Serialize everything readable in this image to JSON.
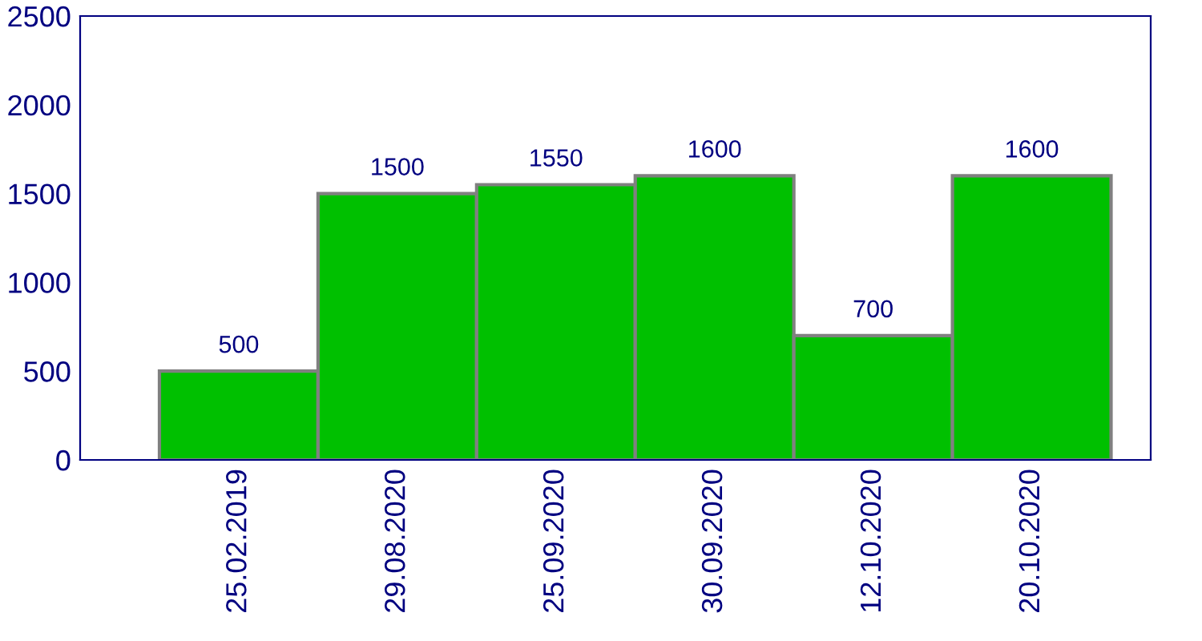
{
  "chart_data": {
    "type": "bar",
    "categories": [
      "25.02.2019",
      "29.08.2020",
      "25.09.2020",
      "30.09.2020",
      "12.10.2020",
      "20.10.2020"
    ],
    "values": [
      500,
      1500,
      1550,
      1600,
      700,
      1600
    ],
    "color": "#00c000",
    "ylim": [
      0,
      2500
    ],
    "yticks": [
      0,
      500,
      1000,
      1500,
      2000,
      2500
    ],
    "data_labels": true,
    "grid": false,
    "legend": false
  }
}
